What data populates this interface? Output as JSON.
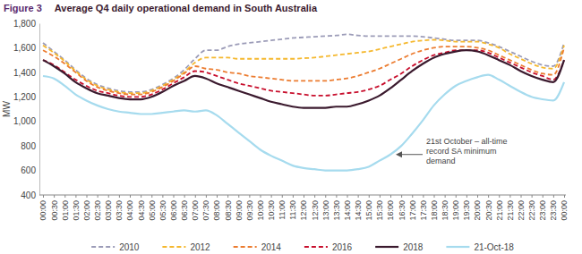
{
  "chart_data": {
    "type": "line",
    "figure_label": "Figure 3",
    "title": "Average Q4 daily operational demand in South Australia",
    "y_label": "MW",
    "annotation": [
      "21st October – all-time",
      "record SA minimum",
      "demand"
    ],
    "categories": [
      "00:00",
      "00:30",
      "01:00",
      "01:30",
      "02:00",
      "02:30",
      "03:00",
      "03:30",
      "04:00",
      "04:30",
      "05:00",
      "05:30",
      "06:00",
      "06:30",
      "07:00",
      "07:30",
      "08:00",
      "08:30",
      "09:00",
      "09:30",
      "10:00",
      "10:30",
      "11:00",
      "11:30",
      "12:00",
      "12:30",
      "13:00",
      "13:30",
      "14:00",
      "14:30",
      "15:00",
      "15:30",
      "16:00",
      "16:30",
      "17:00",
      "17:30",
      "18:00",
      "18:30",
      "19:00",
      "19:30",
      "20:00",
      "20:30",
      "21:00",
      "21:30",
      "22:00",
      "22:30",
      "23:00",
      "23:30",
      "00:00"
    ],
    "ylim": [
      400,
      1800
    ],
    "yticks": [
      400,
      600,
      800,
      {
        "value": 1000,
        "label": "1,000"
      },
      {
        "value": 1200,
        "label": "1,200"
      },
      {
        "value": 1400,
        "label": "1,400"
      },
      {
        "value": 1600,
        "label": "1,600"
      },
      {
        "value": 1800,
        "label": "1,800"
      }
    ],
    "grid": false,
    "legend": "bottom",
    "series": [
      {
        "name": "2010",
        "color": "#9c9cb8",
        "line_style": "dashed",
        "values": [
          1640,
          1570,
          1500,
          1420,
          1350,
          1300,
          1270,
          1250,
          1240,
          1240,
          1260,
          1300,
          1350,
          1420,
          1510,
          1580,
          1580,
          1610,
          1630,
          1640,
          1650,
          1660,
          1670,
          1680,
          1685,
          1690,
          1695,
          1700,
          1710,
          1700,
          1695,
          1695,
          1695,
          1695,
          1695,
          1690,
          1680,
          1670,
          1660,
          1660,
          1660,
          1640,
          1610,
          1570,
          1530,
          1490,
          1460,
          1450,
          1640
        ]
      },
      {
        "name": "2012",
        "color": "#f5b82e",
        "line_style": "dashed",
        "values": [
          1620,
          1560,
          1490,
          1410,
          1340,
          1290,
          1260,
          1240,
          1230,
          1230,
          1250,
          1290,
          1340,
          1400,
          1480,
          1520,
          1520,
          1520,
          1510,
          1510,
          1510,
          1510,
          1510,
          1510,
          1515,
          1520,
          1530,
          1540,
          1550,
          1560,
          1570,
          1590,
          1610,
          1630,
          1650,
          1660,
          1665,
          1660,
          1650,
          1650,
          1650,
          1630,
          1600,
          1550,
          1510,
          1470,
          1440,
          1430,
          1620
        ]
      },
      {
        "name": "2014",
        "color": "#ec7c30",
        "line_style": "dashed",
        "values": [
          1580,
          1530,
          1470,
          1400,
          1330,
          1280,
          1250,
          1230,
          1220,
          1220,
          1240,
          1280,
          1330,
          1390,
          1450,
          1430,
          1420,
          1400,
          1390,
          1370,
          1360,
          1350,
          1340,
          1330,
          1330,
          1330,
          1330,
          1340,
          1350,
          1370,
          1400,
          1430,
          1470,
          1510,
          1550,
          1580,
          1600,
          1610,
          1610,
          1610,
          1600,
          1580,
          1540,
          1500,
          1460,
          1420,
          1390,
          1380,
          1600
        ]
      },
      {
        "name": "2016",
        "color": "#c8102e",
        "line_style": "dashed",
        "values": [
          1500,
          1460,
          1400,
          1340,
          1290,
          1250,
          1230,
          1210,
          1200,
          1200,
          1220,
          1260,
          1310,
          1360,
          1410,
          1400,
          1370,
          1340,
          1310,
          1290,
          1270,
          1250,
          1240,
          1230,
          1220,
          1210,
          1210,
          1220,
          1230,
          1240,
          1260,
          1290,
          1340,
          1390,
          1450,
          1500,
          1540,
          1560,
          1580,
          1580,
          1580,
          1560,
          1520,
          1480,
          1440,
          1400,
          1370,
          1340,
          1500
        ]
      },
      {
        "name": "2018",
        "color": "#3b1a2e",
        "line_style": "solid",
        "values": [
          1500,
          1450,
          1390,
          1320,
          1270,
          1230,
          1210,
          1190,
          1180,
          1180,
          1200,
          1240,
          1290,
          1330,
          1370,
          1350,
          1310,
          1280,
          1250,
          1220,
          1190,
          1160,
          1140,
          1120,
          1110,
          1110,
          1110,
          1120,
          1120,
          1140,
          1170,
          1210,
          1270,
          1340,
          1410,
          1470,
          1520,
          1550,
          1570,
          1580,
          1570,
          1540,
          1500,
          1460,
          1410,
          1370,
          1340,
          1320,
          1500
        ]
      },
      {
        "name": "21-Oct-18",
        "color": "#a6dbee",
        "line_style": "solid",
        "values": [
          1370,
          1350,
          1290,
          1220,
          1170,
          1130,
          1100,
          1080,
          1070,
          1060,
          1060,
          1070,
          1080,
          1090,
          1080,
          1090,
          1050,
          980,
          910,
          840,
          770,
          720,
          680,
          640,
          620,
          610,
          600,
          600,
          600,
          610,
          630,
          680,
          730,
          800,
          900,
          1010,
          1130,
          1220,
          1290,
          1330,
          1360,
          1380,
          1340,
          1290,
          1240,
          1200,
          1180,
          1170,
          1320
        ]
      }
    ]
  }
}
